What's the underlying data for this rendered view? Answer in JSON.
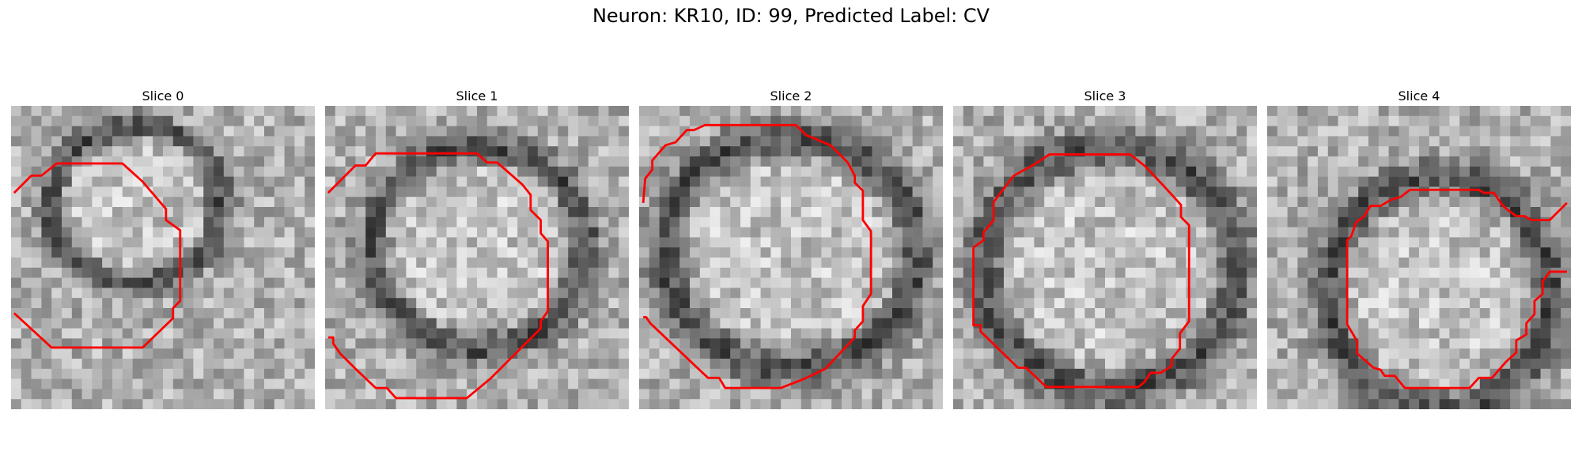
{
  "figure": {
    "title": "Neuron: KR10, ID: 99, Predicted Label: CV"
  },
  "panels": [
    {
      "title": "Slice 0",
      "ring": {
        "cx": 12.3,
        "cy": 9.8,
        "rx": 8.4,
        "ry": 7.8
      },
      "contour_color": "#ff0000",
      "contour": [
        [
          0.3,
          8.6
        ],
        [
          2,
          6.9
        ],
        [
          3,
          6.9
        ],
        [
          4.5,
          5.7
        ],
        [
          11,
          5.7
        ],
        [
          13,
          7.5
        ],
        [
          15.3,
          10.2
        ],
        [
          15.3,
          11.3
        ],
        [
          16.7,
          12.3
        ],
        [
          16.7,
          19.3
        ],
        [
          16,
          20
        ],
        [
          16,
          21
        ],
        [
          13,
          23.9
        ],
        [
          4,
          23.9
        ],
        [
          0.3,
          20.5
        ]
      ]
    },
    {
      "title": "Slice 1",
      "ring": {
        "cx": 15.2,
        "cy": 14.0,
        "rx": 10.5,
        "ry": 10.0
      },
      "contour_color": "#ff0000",
      "contour": [
        [
          0.3,
          8.6
        ],
        [
          3,
          5.9
        ],
        [
          4,
          5.9
        ],
        [
          5,
          4.7
        ],
        [
          15,
          4.7
        ],
        [
          16,
          5.6
        ],
        [
          17,
          5.6
        ],
        [
          19.5,
          7.8
        ],
        [
          20.3,
          8.8
        ],
        [
          20.3,
          10.3
        ],
        [
          21.3,
          11.3
        ],
        [
          21.3,
          12.6
        ],
        [
          22,
          13.4
        ],
        [
          22,
          20.3
        ],
        [
          21.3,
          21.3
        ],
        [
          21.3,
          22
        ],
        [
          16.3,
          27
        ],
        [
          14,
          28.9
        ],
        [
          7,
          28.9
        ],
        [
          6.1,
          27.9
        ],
        [
          5,
          27.9
        ],
        [
          3,
          26
        ],
        [
          1.5,
          24.5
        ],
        [
          0.8,
          23.5
        ],
        [
          0.8,
          22.9
        ],
        [
          0.3,
          22.9
        ]
      ]
    },
    {
      "title": "Slice 2",
      "ring": {
        "cx": 15.0,
        "cy": 14.5,
        "rx": 12.5,
        "ry": 11.5
      },
      "contour_color": "#ff0000",
      "contour": [
        [
          0.4,
          9.6
        ],
        [
          0.6,
          7.2
        ],
        [
          1.3,
          6.3
        ],
        [
          1.3,
          5.4
        ],
        [
          2.6,
          3.9
        ],
        [
          3.6,
          3.6
        ],
        [
          4.7,
          2.4
        ],
        [
          5.4,
          2.4
        ],
        [
          6.5,
          1.9
        ],
        [
          15.5,
          1.9
        ],
        [
          16.5,
          2.9
        ],
        [
          17.5,
          3.3
        ],
        [
          18.9,
          3.9
        ],
        [
          20.6,
          5.6
        ],
        [
          21.3,
          6.9
        ],
        [
          21.3,
          7.6
        ],
        [
          22.1,
          8.4
        ],
        [
          22.1,
          11.3
        ],
        [
          22.9,
          12.4
        ],
        [
          22.9,
          18.6
        ],
        [
          22.1,
          19.8
        ],
        [
          22.1,
          21.3
        ],
        [
          21.3,
          22.2
        ],
        [
          21.3,
          22.9
        ],
        [
          18.4,
          26
        ],
        [
          16.3,
          27
        ],
        [
          14,
          27.9
        ],
        [
          10,
          27.9
        ],
        [
          8.5,
          27.9
        ],
        [
          7.9,
          26.9
        ],
        [
          6.8,
          26.9
        ],
        [
          1.1,
          21.5
        ],
        [
          0.7,
          20.9
        ],
        [
          0.4,
          20.9
        ]
      ]
    },
    {
      "title": "Slice 3",
      "ring": {
        "cx": 15.5,
        "cy": 16.0,
        "rx": 12.5,
        "ry": 12.0
      },
      "contour_color": "#ff0000",
      "contour": [
        [
          2,
          14
        ],
        [
          3,
          13.3
        ],
        [
          3,
          12.5
        ],
        [
          4,
          11.3
        ],
        [
          4,
          9.5
        ],
        [
          6,
          6.9
        ],
        [
          8,
          5.8
        ],
        [
          9.5,
          4.8
        ],
        [
          17.5,
          4.8
        ],
        [
          19,
          6
        ],
        [
          20.5,
          7.6
        ],
        [
          21.7,
          8.9
        ],
        [
          22.5,
          9.8
        ],
        [
          22.5,
          11
        ],
        [
          23.3,
          11.8
        ],
        [
          23.3,
          21.3
        ],
        [
          22.4,
          22.5
        ],
        [
          22.4,
          24
        ],
        [
          21.6,
          25
        ],
        [
          21.6,
          25.7
        ],
        [
          20.5,
          26.4
        ],
        [
          19.5,
          26.4
        ],
        [
          18.9,
          27.3
        ],
        [
          18.3,
          27.8
        ],
        [
          9.2,
          27.8
        ],
        [
          7.2,
          25.9
        ],
        [
          6.4,
          25.9
        ],
        [
          2.7,
          22.3
        ],
        [
          2.7,
          21.7
        ],
        [
          2,
          21.7
        ],
        [
          2,
          14
        ]
      ]
    },
    {
      "title": "Slice 4",
      "ring": {
        "cx": 17.0,
        "cy": 18.5,
        "rx": 11.0,
        "ry": 11.5
      },
      "contour_color": "#ff0000",
      "contour": [
        [
          29.6,
          9.6
        ],
        [
          27.9,
          11.3
        ],
        [
          26.1,
          11.3
        ],
        [
          25.4,
          10.9
        ],
        [
          24.6,
          10.9
        ],
        [
          23.9,
          10.4
        ],
        [
          23.2,
          9.8
        ],
        [
          22.4,
          8.6
        ],
        [
          21.4,
          8.6
        ],
        [
          20.9,
          8.3
        ],
        [
          14.1,
          8.3
        ],
        [
          13.2,
          9
        ],
        [
          12.2,
          9.3
        ],
        [
          11.2,
          9.9
        ],
        [
          10.2,
          9.9
        ],
        [
          9.6,
          10.9
        ],
        [
          8.8,
          11.5
        ],
        [
          8.3,
          12.9
        ],
        [
          7.9,
          13.3
        ],
        [
          7.9,
          21.6
        ],
        [
          8.9,
          23.3
        ],
        [
          8.9,
          24.5
        ],
        [
          10.5,
          25.9
        ],
        [
          11.2,
          26.1
        ],
        [
          11.6,
          26.7
        ],
        [
          12.6,
          26.7
        ],
        [
          13.6,
          27.9
        ],
        [
          20,
          27.9
        ],
        [
          20.9,
          26.9
        ],
        [
          22.2,
          26.9
        ],
        [
          23.6,
          25.3
        ],
        [
          24.6,
          24.4
        ],
        [
          24.6,
          23.2
        ],
        [
          25.6,
          22.6
        ],
        [
          25.6,
          21.5
        ],
        [
          26.4,
          20.6
        ],
        [
          26.4,
          19.3
        ],
        [
          27.2,
          18.6
        ],
        [
          27.2,
          17.4
        ],
        [
          27.9,
          16.4
        ],
        [
          29.6,
          16.4
        ]
      ]
    }
  ]
}
